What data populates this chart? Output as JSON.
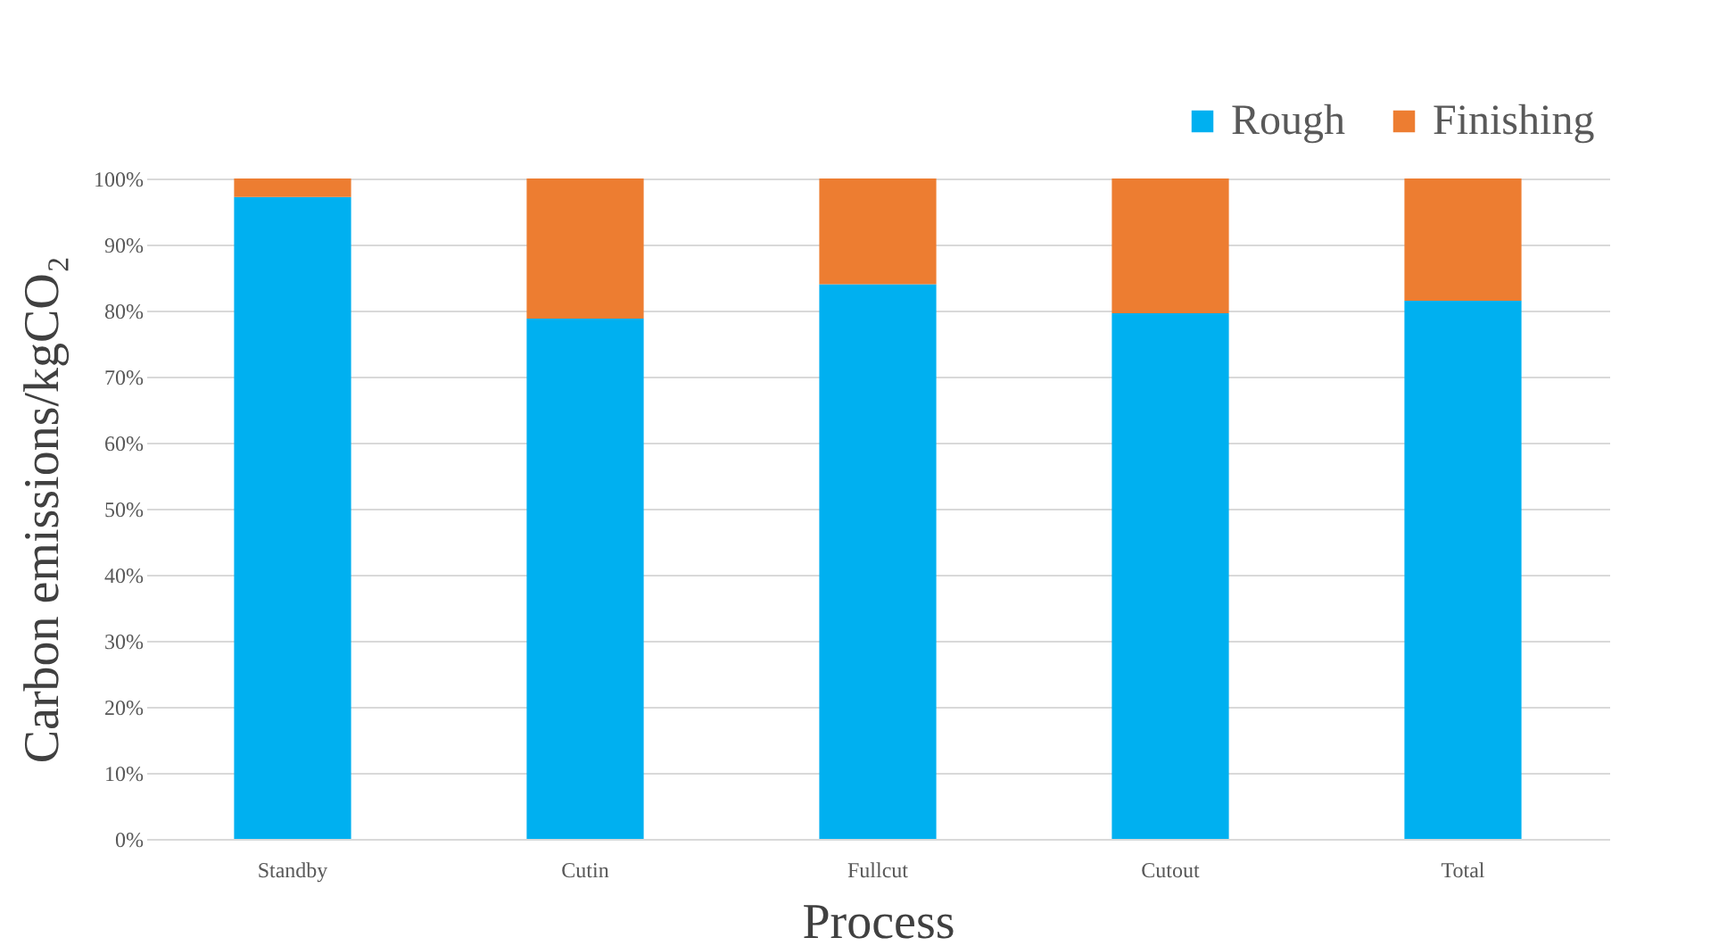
{
  "chart_data": {
    "type": "bar",
    "stacked": true,
    "xlabel": "Process",
    "ylabel": "Carbon emissions/kgCO₂",
    "categories": [
      "Standby",
      "Cutin",
      "Fullcut",
      "Cutout",
      "Total"
    ],
    "series": [
      {
        "name": "Rough",
        "color": "#00b0f0",
        "values": [
          97.2,
          78.8,
          84.0,
          79.6,
          81.5
        ]
      },
      {
        "name": "Finishing",
        "color": "#ed7d31",
        "values": [
          2.8,
          21.2,
          16.0,
          20.4,
          18.5
        ]
      }
    ],
    "ylim": [
      0,
      100
    ],
    "yticks": [
      {
        "value": 0,
        "label": "0%"
      },
      {
        "value": 10,
        "label": "10%"
      },
      {
        "value": 20,
        "label": "20%"
      },
      {
        "value": 30,
        "label": "30%"
      },
      {
        "value": 40,
        "label": "40%"
      },
      {
        "value": 50,
        "label": "50%"
      },
      {
        "value": 60,
        "label": "60%"
      },
      {
        "value": 70,
        "label": "70%"
      },
      {
        "value": 80,
        "label": "80%"
      },
      {
        "value": 90,
        "label": "90%"
      },
      {
        "value": 100,
        "label": "100%"
      }
    ],
    "grid": "y",
    "legend": "top right"
  }
}
